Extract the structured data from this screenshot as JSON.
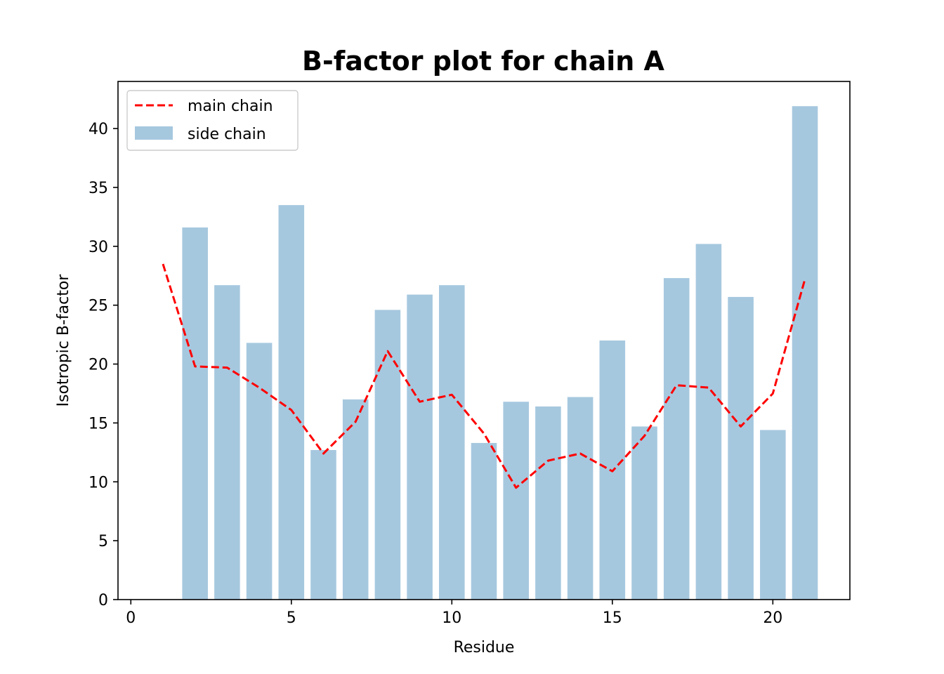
{
  "chart_data": {
    "type": "bar",
    "title": "B-factor plot for chain A",
    "xlabel": "Residue",
    "ylabel": "Isotropic B-factor",
    "xlim": [
      -0.4,
      22.4
    ],
    "ylim": [
      0,
      44
    ],
    "x_ticks": [
      0,
      5,
      10,
      15,
      20
    ],
    "y_ticks": [
      0,
      5,
      10,
      15,
      20,
      25,
      30,
      35,
      40
    ],
    "grid": false,
    "legend_position": "top-left",
    "series": [
      {
        "name": "main chain",
        "type": "line",
        "style": "dashed",
        "color": "#ff0000",
        "x": [
          1,
          2,
          3,
          4,
          5,
          6,
          7,
          8,
          9,
          10,
          11,
          12,
          13,
          14,
          15,
          16,
          17,
          18,
          19,
          20,
          21
        ],
        "values": [
          28.5,
          19.8,
          19.7,
          18.0,
          16.1,
          12.4,
          15.1,
          21.1,
          16.8,
          17.4,
          14.1,
          9.5,
          11.8,
          12.4,
          10.9,
          13.9,
          18.2,
          18.0,
          14.7,
          17.5,
          27.2
        ]
      },
      {
        "name": "side chain",
        "type": "bar",
        "color": "#a6c8df",
        "x": [
          2,
          3,
          4,
          5,
          6,
          7,
          8,
          9,
          10,
          11,
          12,
          13,
          14,
          15,
          16,
          17,
          18,
          19,
          20,
          21
        ],
        "values": [
          31.6,
          26.7,
          21.8,
          33.5,
          12.7,
          17.0,
          24.6,
          25.9,
          26.7,
          13.3,
          16.8,
          16.4,
          17.2,
          22.0,
          14.7,
          27.3,
          30.2,
          25.7,
          14.4,
          41.9
        ]
      }
    ]
  }
}
